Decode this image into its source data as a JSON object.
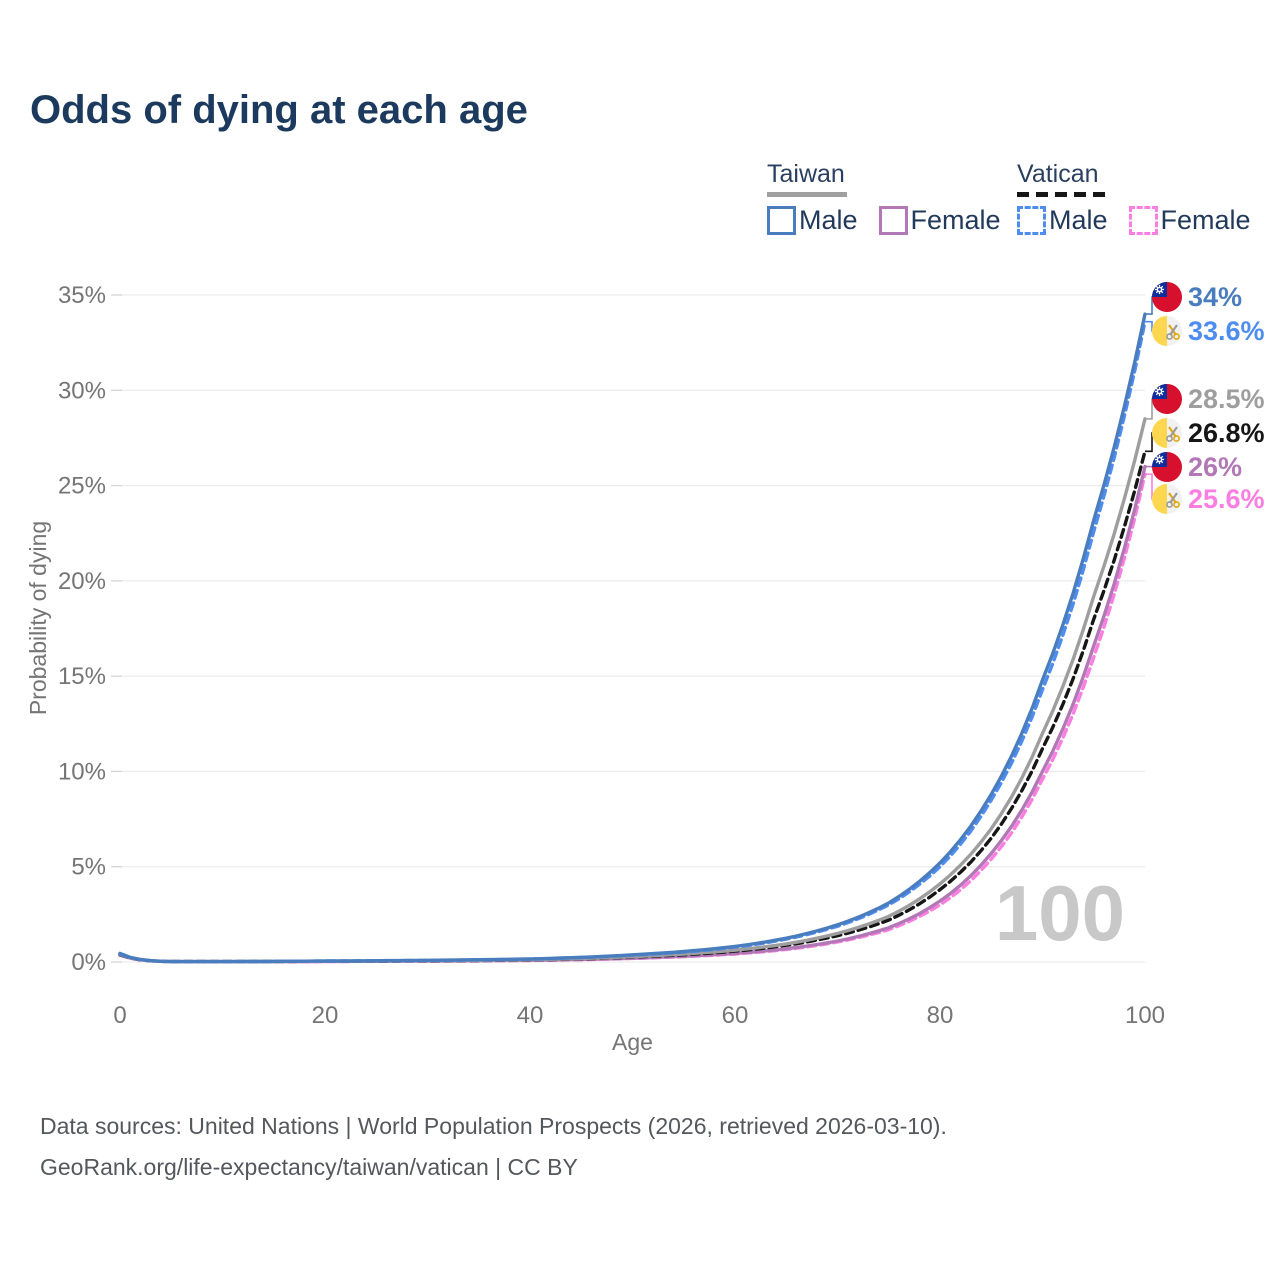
{
  "title": "Odds of dying at each age",
  "watermark_age": "100",
  "legend": {
    "groups": [
      {
        "label": "Taiwan",
        "line_style": "solid",
        "underline_color": "#a0a0a0",
        "items": [
          {
            "label": "Male",
            "color": "#4a7dbe"
          },
          {
            "label": "Female",
            "color": "#b277b5"
          }
        ]
      },
      {
        "label": "Vatican",
        "line_style": "dashed",
        "underline_color": "#161616",
        "items": [
          {
            "label": "Male",
            "color": "#4e8cf0"
          },
          {
            "label": "Female",
            "color": "#fb7ee0"
          }
        ]
      }
    ]
  },
  "footer": {
    "line1": "Data sources: United Nations | World Population Prospects (2026, retrieved 2026-03-10).",
    "line2": "GeoRank.org/life-expectancy/taiwan/vatican | CC BY"
  },
  "chart_data": {
    "type": "line",
    "title": "Odds of dying at each age",
    "xlabel": "Age",
    "ylabel": "Probability of dying",
    "xlim": [
      0,
      100
    ],
    "ylim": [
      0,
      35
    ],
    "x_ticks": [
      0,
      20,
      40,
      60,
      80,
      100
    ],
    "y_ticks": [
      0,
      5,
      10,
      15,
      20,
      25,
      30,
      35
    ],
    "y_tick_suffix": "%",
    "grid": "horizontal",
    "legend_position": "top-right",
    "knot_ages": [
      0,
      5,
      10,
      20,
      30,
      40,
      50,
      55,
      60,
      65,
      70,
      75,
      80,
      85,
      90,
      95,
      100
    ],
    "series": [
      {
        "name": "Taiwan Male",
        "country": "taiwan",
        "sex": "male",
        "line": "solid",
        "color": "#4a7dbe",
        "end_label": "34%",
        "end_value": 34.0,
        "values": [
          0.45,
          0.02,
          0.02,
          0.05,
          0.09,
          0.16,
          0.38,
          0.55,
          0.82,
          1.25,
          1.95,
          3.1,
          5.2,
          8.8,
          14.8,
          23.2,
          34.0
        ]
      },
      {
        "name": "Vatican Male",
        "country": "vatican",
        "sex": "male",
        "line": "dashed",
        "color": "#4e8cf0",
        "end_label": "33.6%",
        "end_value": 33.6,
        "values": [
          0.42,
          0.02,
          0.02,
          0.05,
          0.08,
          0.15,
          0.36,
          0.52,
          0.78,
          1.2,
          1.88,
          3.0,
          5.0,
          8.5,
          14.3,
          22.6,
          33.6
        ]
      },
      {
        "name": "Taiwan Total",
        "country": "taiwan",
        "sex": "both",
        "line": "solid",
        "color": "#9e9e9e",
        "end_label": "28.5%",
        "end_value": 28.5,
        "values": [
          0.4,
          0.02,
          0.02,
          0.04,
          0.07,
          0.12,
          0.28,
          0.42,
          0.62,
          0.95,
          1.5,
          2.4,
          4.1,
          7.0,
          12.0,
          19.2,
          28.5
        ]
      },
      {
        "name": "Vatican Total",
        "country": "vatican",
        "sex": "both",
        "line": "dashed",
        "color": "#161616",
        "end_label": "26.8%",
        "end_value": 26.8,
        "values": [
          0.38,
          0.02,
          0.02,
          0.04,
          0.06,
          0.11,
          0.26,
          0.38,
          0.57,
          0.88,
          1.38,
          2.2,
          3.8,
          6.5,
          11.2,
          18.0,
          26.8
        ]
      },
      {
        "name": "Taiwan Female",
        "country": "taiwan",
        "sex": "female",
        "line": "solid",
        "color": "#b277b5",
        "end_label": "26%",
        "end_value": 26.0,
        "values": [
          0.37,
          0.02,
          0.02,
          0.03,
          0.05,
          0.09,
          0.2,
          0.3,
          0.45,
          0.7,
          1.1,
          1.8,
          3.2,
          5.7,
          10.0,
          16.6,
          26.0
        ]
      },
      {
        "name": "Vatican Female",
        "country": "vatican",
        "sex": "female",
        "line": "dashed",
        "color": "#fb7ee0",
        "end_label": "25.6%",
        "end_value": 25.6,
        "values": [
          0.35,
          0.02,
          0.02,
          0.03,
          0.05,
          0.08,
          0.19,
          0.28,
          0.42,
          0.66,
          1.05,
          1.7,
          3.0,
          5.4,
          9.6,
          16.0,
          25.6
        ]
      }
    ],
    "annotations": {
      "age_counter_watermark": "100"
    }
  },
  "colors": {
    "title": "#1c3a5e",
    "axis_text": "#757575",
    "gridline": "#ececec",
    "watermark": "#c8c8c8",
    "taiwan_flag_red": "#d7112d",
    "taiwan_flag_blue": "#0f2e9e",
    "vatican_flag_yellow": "#ffd64f"
  }
}
